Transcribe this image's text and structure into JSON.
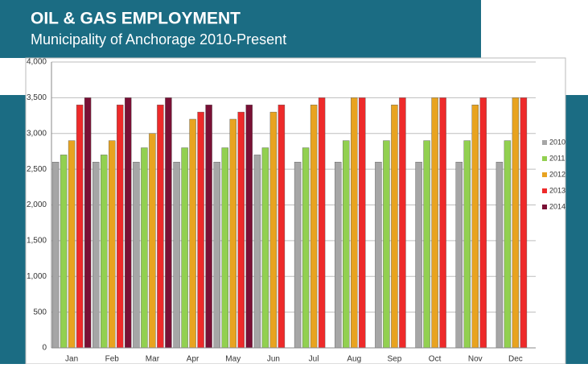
{
  "chart_data": {
    "type": "bar",
    "title": "OIL & GAS EMPLOYMENT",
    "subtitle": "Municipality of Anchorage 2010-Present",
    "categories": [
      "Jan",
      "Feb",
      "Mar",
      "Apr",
      "May",
      "Jun",
      "Jul",
      "Aug",
      "Sep",
      "Oct",
      "Nov",
      "Dec"
    ],
    "series": [
      {
        "name": "2010",
        "color": "#a6a6a6",
        "values": [
          2600,
          2600,
          2600,
          2600,
          2600,
          2700,
          2600,
          2600,
          2600,
          2600,
          2600,
          2600
        ]
      },
      {
        "name": "2011",
        "color": "#92d050",
        "values": [
          2700,
          2700,
          2800,
          2800,
          2800,
          2800,
          2800,
          2900,
          2900,
          2900,
          2900,
          2900
        ]
      },
      {
        "name": "2012",
        "color": "#e8a320",
        "values": [
          2900,
          2900,
          3000,
          3200,
          3200,
          3300,
          3400,
          3500,
          3400,
          3500,
          3400,
          3500
        ]
      },
      {
        "name": "2013",
        "color": "#ee2a2a",
        "values": [
          3400,
          3400,
          3400,
          3300,
          3300,
          3400,
          3500,
          3500,
          3500,
          3500,
          3500,
          3500
        ]
      },
      {
        "name": "2014",
        "color": "#7a1035",
        "values": [
          3500,
          3500,
          3500,
          3400,
          3400,
          null,
          null,
          null,
          null,
          null,
          null,
          null
        ]
      }
    ],
    "ylim": [
      0,
      4000
    ],
    "yticks": [
      0,
      500,
      {
        "value": 1000,
        "label": "1,000"
      },
      {
        "value": 1500,
        "label": "1,500"
      },
      {
        "value": 2000,
        "label": "2,000"
      },
      {
        "value": 2500,
        "label": "2,500"
      },
      {
        "value": 3000,
        "label": "3,000"
      },
      {
        "value": 3500,
        "label": "3,500"
      },
      {
        "value": 4000,
        "label": "4,000"
      }
    ],
    "grid": true,
    "legend": "right"
  }
}
